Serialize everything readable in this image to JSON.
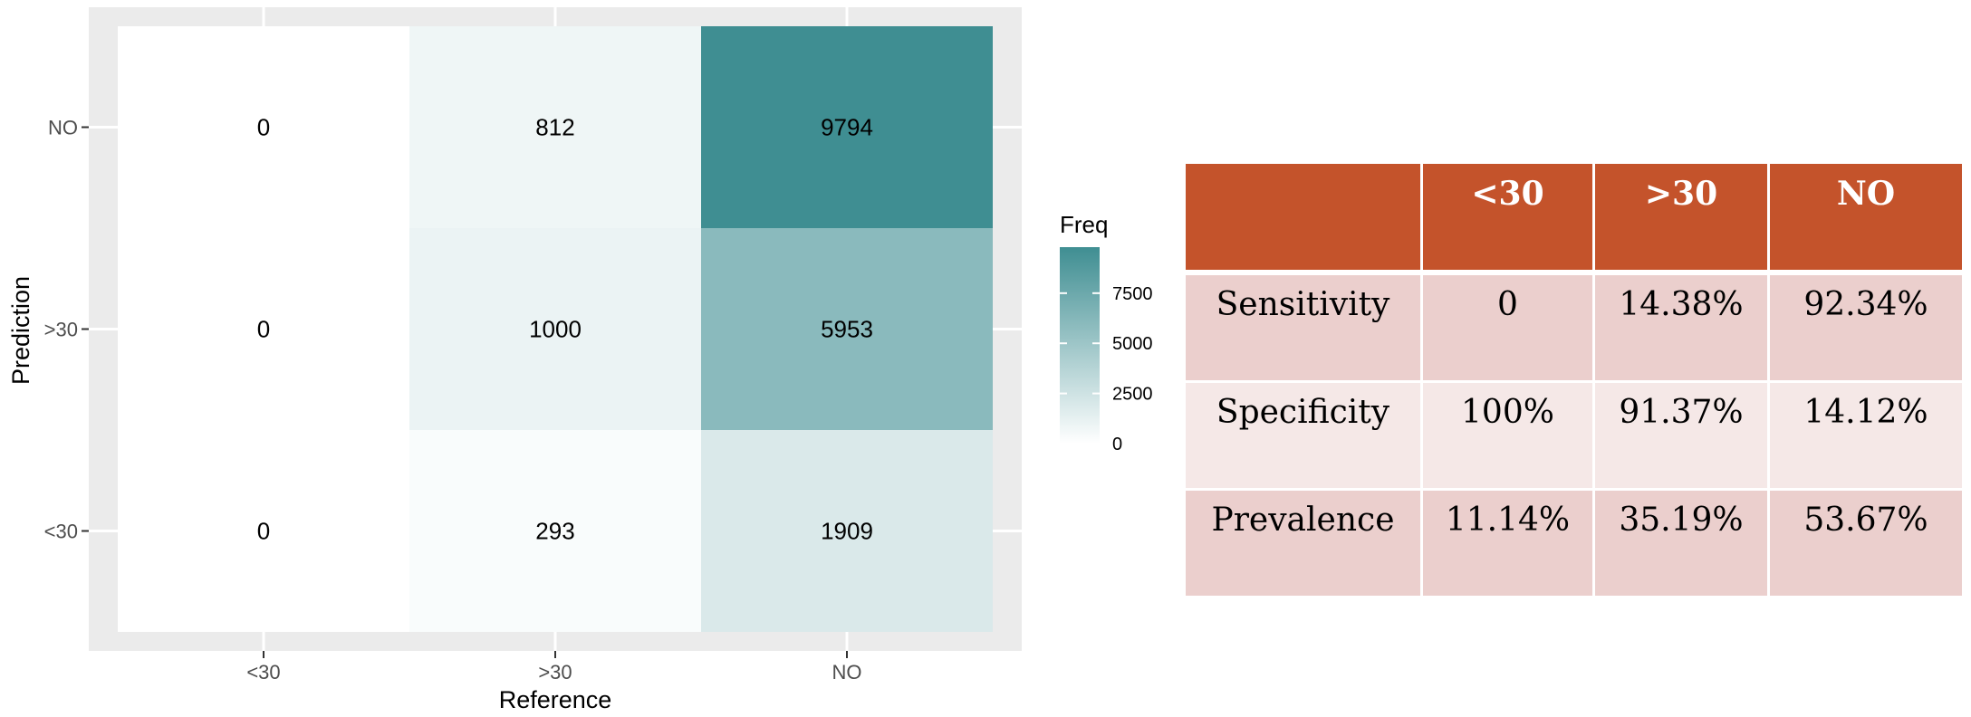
{
  "chart_data": {
    "type": "heatmap",
    "x_categories": [
      "<30",
      ">30",
      "NO"
    ],
    "y_categories": [
      "<30",
      ">30",
      "NO"
    ],
    "xlabel": "Reference",
    "ylabel": "Prediction",
    "cells": [
      {
        "x": "<30",
        "y": "NO",
        "value": 0
      },
      {
        "x": ">30",
        "y": "NO",
        "value": 812
      },
      {
        "x": "NO",
        "y": "NO",
        "value": 9794
      },
      {
        "x": "<30",
        "y": ">30",
        "value": 0
      },
      {
        "x": ">30",
        "y": ">30",
        "value": 1000
      },
      {
        "x": "NO",
        "y": ">30",
        "value": 5953
      },
      {
        "x": "<30",
        "y": "<30",
        "value": 0
      },
      {
        "x": ">30",
        "y": "<30",
        "value": 293
      },
      {
        "x": "NO",
        "y": "<30",
        "value": 1909
      }
    ],
    "legend": {
      "title": "Freq",
      "ticks": [
        0,
        2500,
        5000,
        7500
      ],
      "range": [
        0,
        9794
      ],
      "low_color": "#ffffff",
      "high_color": "#3f8e92",
      "placement": "right"
    },
    "grid": true,
    "panel_background": "#ebebeb"
  },
  "table": {
    "headers": [
      "",
      "<30",
      ">30",
      "NO"
    ],
    "rows": [
      {
        "label": "Sensitivity",
        "values": [
          "0",
          "14.38%",
          "92.34%"
        ]
      },
      {
        "label": "Specificity",
        "values": [
          "100%",
          "91.37%",
          "14.12%"
        ]
      },
      {
        "label": "Prevalence",
        "values": [
          "11.14%",
          "35.19%",
          "53.67%"
        ]
      }
    ],
    "header_color": "#c4532b"
  }
}
